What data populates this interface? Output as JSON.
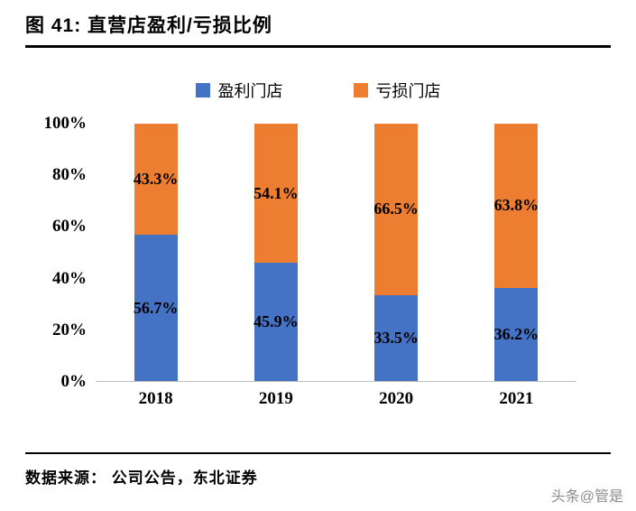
{
  "title": "图 41: 直营店盈利/亏损比例",
  "source": "数据来源： 公司公告，东北证券",
  "watermark": "头条@管是",
  "chart_data": {
    "type": "bar",
    "subtype": "stacked-100-percent",
    "title": "直营店盈利/亏损比例",
    "categories": [
      "2018",
      "2019",
      "2020",
      "2021"
    ],
    "series": [
      {
        "name": "盈利门店",
        "color": "#4472C4",
        "values": [
          56.7,
          45.9,
          33.5,
          36.2
        ]
      },
      {
        "name": "亏损门店",
        "color": "#ED7D31",
        "values": [
          43.3,
          54.1,
          66.5,
          63.8
        ]
      }
    ],
    "value_suffix": "%",
    "ylim": [
      0,
      100
    ],
    "yticks": [
      "0%",
      "20%",
      "40%",
      "60%",
      "80%",
      "100%"
    ],
    "grid": false,
    "legend_position": "top"
  }
}
